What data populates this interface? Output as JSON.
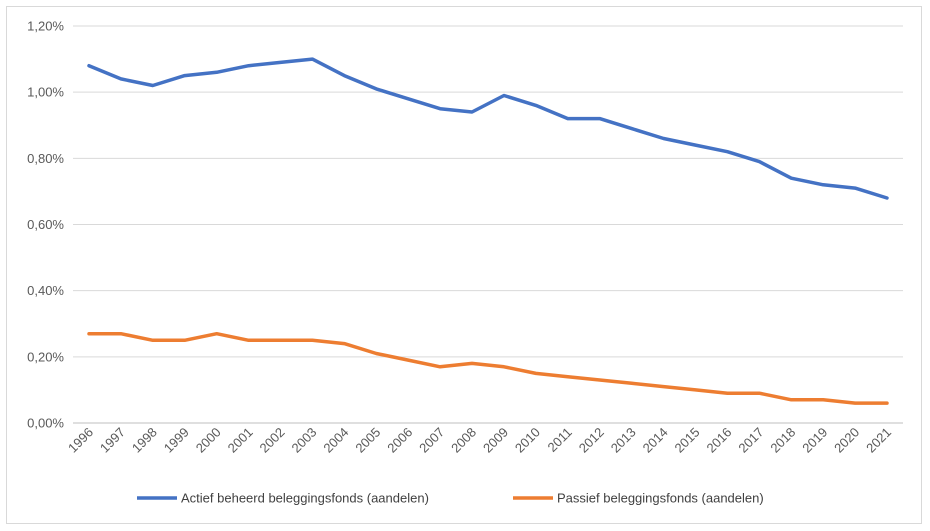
{
  "chart_data": {
    "type": "line",
    "title": "",
    "xlabel": "",
    "ylabel": "",
    "x": [
      "1996",
      "1997",
      "1998",
      "1999",
      "2000",
      "2001",
      "2002",
      "2003",
      "2004",
      "2005",
      "2006",
      "2007",
      "2008",
      "2009",
      "2010",
      "2011",
      "2012",
      "2013",
      "2014",
      "2015",
      "2016",
      "2017",
      "2018",
      "2019",
      "2020",
      "2021"
    ],
    "yticks": [
      "0,00%",
      "0,20%",
      "0,40%",
      "0,60%",
      "0,80%",
      "1,00%",
      "1,20%"
    ],
    "ylim": [
      0,
      1.2
    ],
    "grid": true,
    "legend_position": "bottom",
    "series": [
      {
        "name": "Actief beheerd beleggingsfonds (aandelen)",
        "color": "#4472c4",
        "values": [
          1.08,
          1.04,
          1.02,
          1.05,
          1.06,
          1.08,
          1.09,
          1.1,
          1.05,
          1.01,
          0.98,
          0.95,
          0.94,
          0.99,
          0.96,
          0.92,
          0.92,
          0.89,
          0.86,
          0.84,
          0.82,
          0.79,
          0.74,
          0.72,
          0.71,
          0.68
        ]
      },
      {
        "name": "Passief beleggingsfonds (aandelen)",
        "color": "#ed7d31",
        "values": [
          0.27,
          0.27,
          0.25,
          0.25,
          0.27,
          0.25,
          0.25,
          0.25,
          0.24,
          0.21,
          0.19,
          0.17,
          0.18,
          0.17,
          0.15,
          0.14,
          0.13,
          0.12,
          0.11,
          0.1,
          0.09,
          0.09,
          0.07,
          0.07,
          0.06,
          0.06
        ]
      }
    ]
  }
}
